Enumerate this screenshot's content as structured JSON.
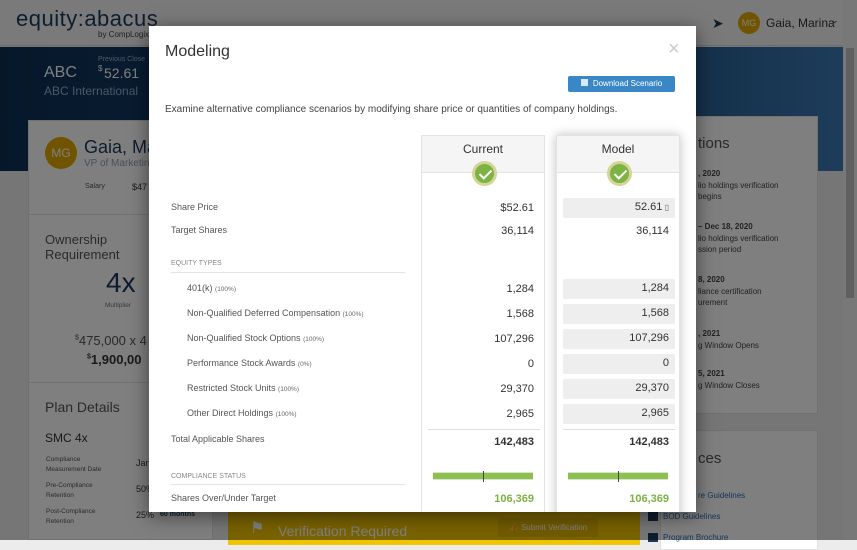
{
  "header": {
    "logo": "equity:abacus",
    "logo_sub": "by CompLogix",
    "user_initials": "MG",
    "user_name": "Gaia, Marina",
    "icons": [
      "send-icon",
      "chevron-down-icon"
    ]
  },
  "banner": {
    "ticker": "ABC",
    "company": "ABC International",
    "prev_close_label": "Previous Close",
    "prev_close": "52.61",
    "currency": "$"
  },
  "profile": {
    "initials": "MG",
    "name": "Gaia, Ma",
    "title": "VP of Marketin",
    "salary_label": "Salary",
    "salary": "$47"
  },
  "ownership": {
    "title1": "Ownership",
    "title2": "Requirement",
    "multiplier": "4x",
    "multiplier_label": "Multiplier",
    "calc": "475,000 x 4",
    "total": "1,900,00"
  },
  "plan": {
    "title": "Plan Details",
    "name": "SMC 4x",
    "rows": [
      {
        "label1": "Compliance",
        "label2": "Measurement Date",
        "value": "Jar"
      },
      {
        "label1": "Pre-Compliance",
        "label2": "Retention",
        "value": "50%"
      },
      {
        "label1": "Post-Compliance",
        "label2": "Retention",
        "value": "25%",
        "extra": "60 months"
      }
    ]
  },
  "notifications": {
    "title": "tions",
    "items": [
      {
        "date": ", 2020",
        "l1": "lio holdings verification",
        "l2": " begins"
      },
      {
        "date": " – Dec 18, 2020",
        "l1": "lio holdings verification",
        "l2": "ssion period"
      },
      {
        "date": "8, 2020",
        "l1": "liance certification",
        "l2": "urement"
      },
      {
        "date": ", 2021",
        "l1": "g Window Opens",
        "l2": ""
      },
      {
        "date": "5, 2021",
        "l1": "g Window Closes",
        "l2": ""
      }
    ]
  },
  "resources": {
    "title": "ces",
    "items": [
      "re Guidelines",
      "BOD Guidelines",
      "Program Brochure"
    ]
  },
  "verification": {
    "title": "Verification Required",
    "button": "Submit Verification"
  },
  "modal": {
    "title": "Modeling",
    "close": "×",
    "download_button": "Download Scenario",
    "description": "Examine alternative compliance scenarios by modifying share price or quantities of company holdings.",
    "columns": {
      "current": "Current",
      "model": "Model"
    },
    "share_price": {
      "label": "Share Price",
      "current": "$52.61",
      "model": "52.61"
    },
    "target_shares": {
      "label": "Target Shares",
      "current": "36,114",
      "model": "36,114"
    },
    "equity_types_label": "EQUITY TYPES",
    "equity_types": [
      {
        "label": "401(k)",
        "pct": "(100%)",
        "current": "1,284",
        "model": "1,284"
      },
      {
        "label": "Non-Qualified Deferred Compensation",
        "pct": "(100%)",
        "current": "1,568",
        "model": "1,568"
      },
      {
        "label": "Non-Qualified Stock Options",
        "pct": "(100%)",
        "current": "107,296",
        "model": "107,296"
      },
      {
        "label": "Performance Stock Awards",
        "pct": "(0%)",
        "current": "0",
        "model": "0"
      },
      {
        "label": "Restricted Stock Units",
        "pct": "(100%)",
        "current": "29,370",
        "model": "29,370"
      },
      {
        "label": "Other Direct Holdings",
        "pct": "(100%)",
        "current": "2,965",
        "model": "2,965"
      }
    ],
    "total": {
      "label": "Total Applicable Shares",
      "current": "142,483",
      "model": "142,483"
    },
    "compliance_label": "COMPLIANCE STATUS",
    "compliance_progress_current": 1.0,
    "compliance_progress_model": 1.0,
    "over_under": {
      "label": "Shares Over/Under Target",
      "current": "106,369",
      "model": "106,369"
    }
  },
  "colors": {
    "accent": "#3a87c8",
    "success": "#7cb342",
    "navy": "#0d2f55",
    "gold": "#c99a06"
  }
}
